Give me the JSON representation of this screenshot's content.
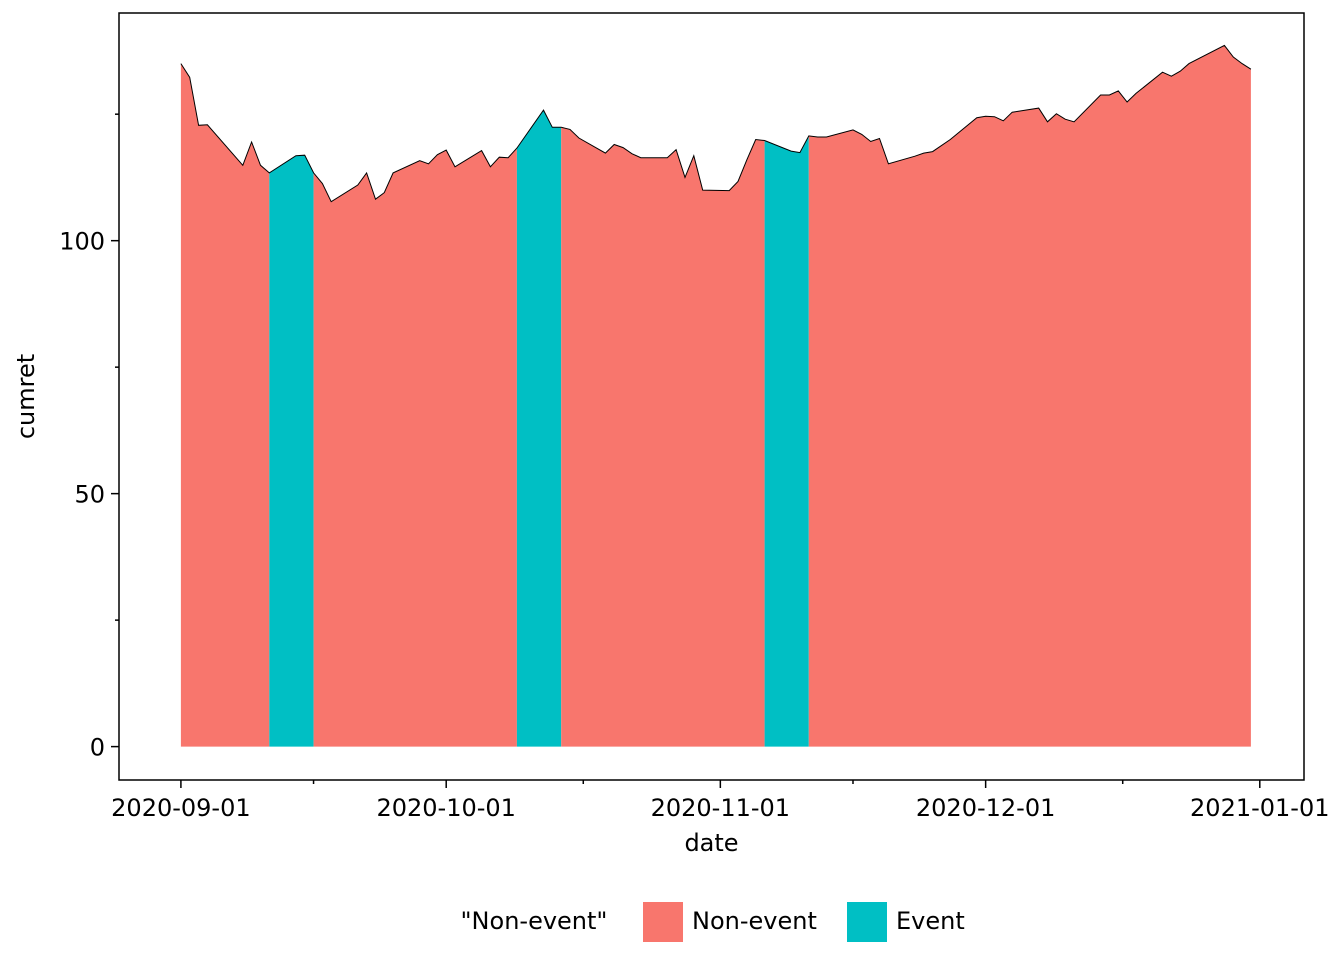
{
  "chart_data": {
    "type": "area",
    "title": "",
    "xlabel": "date",
    "ylabel": "cumret",
    "xlim": [
      "2020-08-25",
      "2021-01-06"
    ],
    "ylim": [
      -6.6,
      145
    ],
    "x_ticks": [
      "2020-09-01",
      "2020-10-01",
      "2020-11-01",
      "2020-12-01",
      "2021-01-01"
    ],
    "y_ticks": [
      0,
      50,
      100
    ],
    "y_minor_ticks": [
      25,
      75,
      125
    ],
    "grid": false,
    "legend": {
      "title": "\"Non-event\"",
      "position": "bottom",
      "entries": [
        {
          "label": "Non-event",
          "color": "#F8766D"
        },
        {
          "label": "Event",
          "color": "#00BFC4"
        }
      ]
    },
    "categories": [
      {
        "name": "Non-event",
        "color": "#F8766D"
      },
      {
        "name": "Event",
        "color": "#00BFC4"
      }
    ],
    "event_ranges": [
      [
        "2020-09-11",
        "2020-09-16"
      ],
      [
        "2020-10-09",
        "2020-10-14"
      ],
      [
        "2020-11-06",
        "2020-11-11"
      ]
    ],
    "x": [
      "2020-09-01",
      "2020-09-02",
      "2020-09-03",
      "2020-09-04",
      "2020-09-08",
      "2020-09-09",
      "2020-09-10",
      "2020-09-11",
      "2020-09-14",
      "2020-09-15",
      "2020-09-16",
      "2020-09-17",
      "2020-09-18",
      "2020-09-21",
      "2020-09-22",
      "2020-09-23",
      "2020-09-24",
      "2020-09-25",
      "2020-09-28",
      "2020-09-29",
      "2020-09-30",
      "2020-10-01",
      "2020-10-02",
      "2020-10-05",
      "2020-10-06",
      "2020-10-07",
      "2020-10-08",
      "2020-10-09",
      "2020-10-12",
      "2020-10-13",
      "2020-10-14",
      "2020-10-15",
      "2020-10-16",
      "2020-10-19",
      "2020-10-20",
      "2020-10-21",
      "2020-10-22",
      "2020-10-23",
      "2020-10-26",
      "2020-10-27",
      "2020-10-28",
      "2020-10-29",
      "2020-10-30",
      "2020-11-02",
      "2020-11-03",
      "2020-11-04",
      "2020-11-05",
      "2020-11-06",
      "2020-11-09",
      "2020-11-10",
      "2020-11-11",
      "2020-11-12",
      "2020-11-13",
      "2020-11-16",
      "2020-11-17",
      "2020-11-18",
      "2020-11-19",
      "2020-11-20",
      "2020-11-23",
      "2020-11-24",
      "2020-11-25",
      "2020-11-27",
      "2020-11-30",
      "2020-12-01",
      "2020-12-02",
      "2020-12-03",
      "2020-12-04",
      "2020-12-07",
      "2020-12-08",
      "2020-12-09",
      "2020-12-10",
      "2020-12-11",
      "2020-12-14",
      "2020-12-15",
      "2020-12-16",
      "2020-12-17",
      "2020-12-18",
      "2020-12-21",
      "2020-12-22",
      "2020-12-23",
      "2020-12-24",
      "2020-12-28",
      "2020-12-29",
      "2020-12-30",
      "2020-12-31"
    ],
    "y": [
      135.0,
      132.3,
      122.8,
      122.9,
      114.9,
      119.5,
      114.9,
      113.4,
      116.8,
      116.9,
      113.4,
      111.3,
      107.7,
      111.0,
      113.4,
      108.2,
      109.5,
      113.4,
      115.8,
      115.2,
      117.0,
      117.9,
      114.6,
      117.8,
      114.6,
      116.5,
      116.4,
      118.3,
      125.8,
      122.4,
      122.4,
      122.0,
      120.3,
      117.3,
      119.0,
      118.4,
      117.2,
      116.4,
      116.4,
      118.0,
      112.5,
      116.8,
      110.0,
      109.9,
      111.7,
      116.0,
      120.0,
      119.8,
      117.7,
      117.4,
      120.7,
      120.5,
      120.5,
      121.9,
      121.0,
      119.6,
      120.2,
      115.2,
      116.7,
      117.3,
      117.6,
      120.0,
      124.3,
      124.6,
      124.5,
      123.7,
      125.4,
      126.2,
      123.5,
      125.1,
      124.0,
      123.5,
      128.8,
      128.8,
      129.6,
      127.4,
      129.1,
      133.3,
      132.5,
      133.5,
      135.0,
      138.6,
      136.3,
      135.0,
      133.9
    ]
  }
}
